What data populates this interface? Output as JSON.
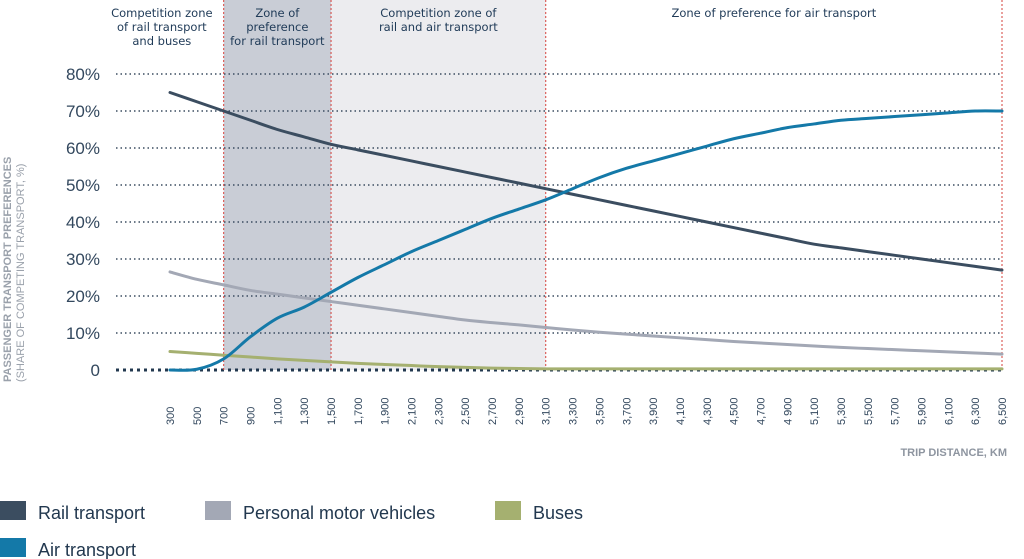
{
  "chart_data": {
    "type": "line",
    "xlabel": "TRIP DISTANCE, KM",
    "ylabel": "PASSENGER TRANSPORT PREFERENCES",
    "ylabel_sub": "(SHARE OF COMPETING TRANSPORT, %)",
    "x": [
      "300",
      "500",
      "700",
      "900",
      "1,100",
      "1,300",
      "1,500",
      "1,700",
      "1,900",
      "2,100",
      "2,300",
      "2,500",
      "2,700",
      "2,900",
      "3,100",
      "3,300",
      "3,500",
      "3,700",
      "3,900",
      "4,100",
      "4,300",
      "4,500",
      "4,700",
      "4 900",
      "5,100",
      "5,300",
      "5,500",
      "5,700",
      "5,900",
      "6,100",
      "6,300",
      "6,500"
    ],
    "y_ticks": [
      "0",
      "10%",
      "20%",
      "30%",
      "40%",
      "50%",
      "60%",
      "70%",
      "80%"
    ],
    "ylim": [
      0,
      80
    ],
    "grid": "horizontal dotted",
    "legend_position": "bottom",
    "series": [
      {
        "name": "Rail transport",
        "color": "#3b4d60",
        "values": [
          75,
          72.5,
          70,
          67.5,
          65,
          63,
          61,
          59.5,
          58,
          56.5,
          55,
          53.5,
          52,
          50.5,
          49,
          47.5,
          46,
          44.5,
          43,
          41.5,
          40,
          38.5,
          37,
          35.5,
          34,
          33,
          32,
          31,
          30,
          29,
          28,
          27
        ]
      },
      {
        "name": "Personal motor vehicles",
        "color": "#a3a8b5",
        "values": [
          26.5,
          24.5,
          23,
          21.5,
          20.5,
          19.5,
          18.5,
          17.5,
          16.5,
          15.5,
          14.5,
          13.5,
          12.8,
          12.2,
          11.5,
          10.8,
          10.2,
          9.7,
          9.2,
          8.7,
          8.2,
          7.7,
          7.3,
          6.9,
          6.5,
          6.1,
          5.8,
          5.5,
          5.2,
          4.9,
          4.6,
          4.3
        ]
      },
      {
        "name": "Buses",
        "color": "#a5b070",
        "values": [
          5,
          4.5,
          4,
          3.5,
          3,
          2.6,
          2.2,
          1.8,
          1.5,
          1.2,
          0.9,
          0.7,
          0.5,
          0.4,
          0.3,
          0.3,
          0.3,
          0.3,
          0.3,
          0.3,
          0.3,
          0.3,
          0.3,
          0.3,
          0.3,
          0.3,
          0.3,
          0.3,
          0.3,
          0.3,
          0.3,
          0.3
        ]
      },
      {
        "name": "Air transport",
        "color": "#1479a8",
        "values": [
          0,
          0.2,
          3,
          9,
          14,
          17,
          21,
          25,
          28.5,
          32,
          35,
          38,
          41,
          43.5,
          46,
          49,
          52,
          54.5,
          56.5,
          58.5,
          60.5,
          62.5,
          64,
          65.5,
          66.5,
          67.5,
          68,
          68.5,
          69,
          69.5,
          70,
          70
        ]
      }
    ],
    "zones": [
      {
        "label": [
          "Competition zone",
          "of rail transport",
          "and buses"
        ],
        "from": "300",
        "to": "700",
        "shaded": "none"
      },
      {
        "label": [
          "Zone of",
          "preference",
          "for rail transport"
        ],
        "from": "700",
        "to": "1,500",
        "shaded": "dark"
      },
      {
        "label": [
          "Competition zone of",
          "rail and air transport"
        ],
        "from": "1,500",
        "to": "3,100",
        "shaded": "light"
      },
      {
        "label": [
          "Zone of preference for air transport"
        ],
        "from": "3,100",
        "to": "6,500",
        "shaded": "none"
      }
    ]
  }
}
